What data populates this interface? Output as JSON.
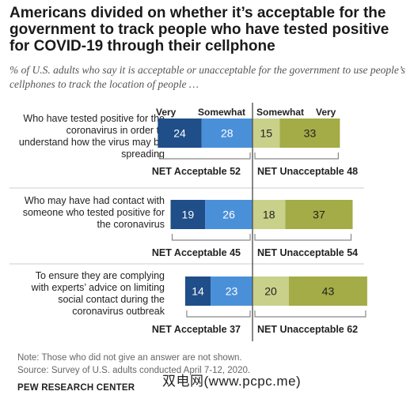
{
  "title": "Americans divided on whether it’s acceptable for the government to track people who have tested positive for COVID-19 through their cellphone",
  "subtitle": "% of U.S. adults who say it is acceptable or unacceptable for the government to use people’s cellphones to track the location of people …",
  "headers": {
    "very_left": "Very",
    "somewhat_left": "Somewhat",
    "somewhat_right": "Somewhat",
    "very_right": "Very"
  },
  "colors": {
    "very_acceptable": "#1f4e89",
    "somewhat_acceptable": "#4a90d9",
    "somewhat_unacceptable": "#c8d08a",
    "very_unacceptable": "#a3ac46",
    "divider": "#555555",
    "bracket": "#888888"
  },
  "rows": [
    {
      "label": "Who have tested positive for the coronavirus in order to understand how the virus may be spreading",
      "net_acceptable_label": "NET Acceptable 52",
      "net_unacceptable_label": "NET Unacceptable 48"
    },
    {
      "label": "Who may have had contact with someone who tested positive for the coronavirus",
      "net_acceptable_label": "NET Acceptable 45",
      "net_unacceptable_label": "NET Unacceptable 54"
    },
    {
      "label": "To ensure they are complying with experts’ advice on limiting social contact during the coronavirus outbreak",
      "net_acceptable_label": "NET Acceptable 37",
      "net_unacceptable_label": "NET Unacceptable 62"
    }
  ],
  "chart_data": {
    "type": "bar",
    "orientation": "horizontal-diverging",
    "categories": [
      "Who have tested positive for the coronavirus in order to understand how the virus may be spreading",
      "Who may have had contact with someone who tested positive for the coronavirus",
      "To ensure they are complying with experts’ advice on limiting social contact during the coronavirus outbreak"
    ],
    "series": [
      {
        "name": "Very",
        "side": "acceptable",
        "values": [
          24,
          19,
          14
        ]
      },
      {
        "name": "Somewhat",
        "side": "acceptable",
        "values": [
          28,
          26,
          23
        ]
      },
      {
        "name": "Somewhat",
        "side": "unacceptable",
        "values": [
          15,
          18,
          20
        ]
      },
      {
        "name": "Very",
        "side": "unacceptable",
        "values": [
          33,
          37,
          43
        ]
      }
    ],
    "net_acceptable": [
      52,
      45,
      37
    ],
    "net_unacceptable": [
      48,
      54,
      62
    ]
  },
  "note": "Note: Those who did not give an answer are not shown.",
  "source": "Source: Survey of U.S. adults conducted April 7-12, 2020.",
  "org": "PEW RESEARCH CENTER",
  "watermark": "双电网(www.pcpc.me)"
}
